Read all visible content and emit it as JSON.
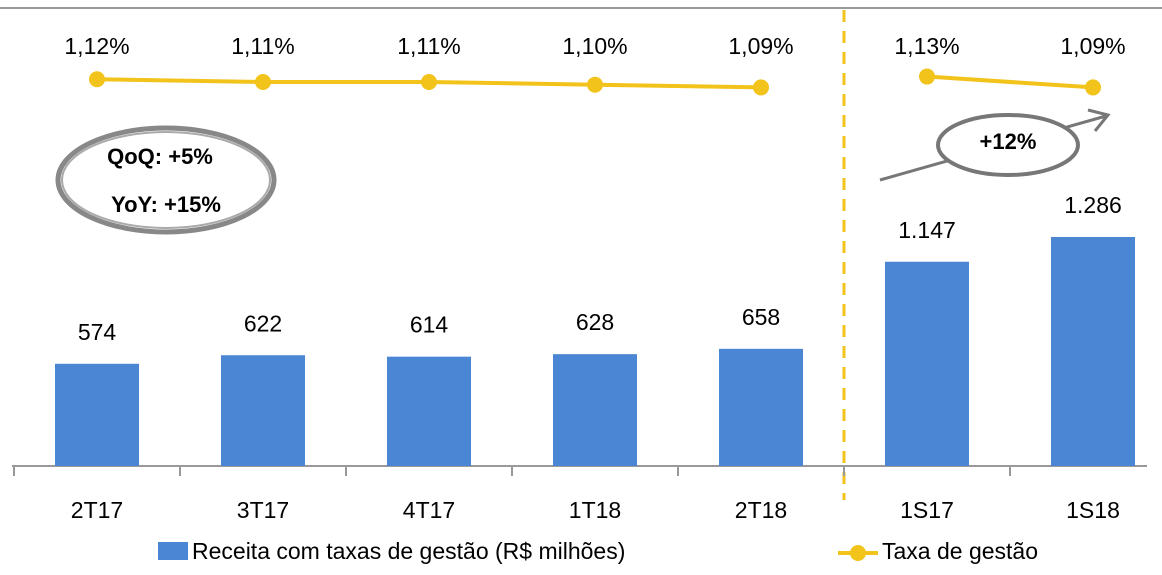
{
  "chart_data": {
    "type": "bar_line",
    "categories": [
      "2T17",
      "3T17",
      "4T17",
      "1T18",
      "2T18",
      "1S17",
      "1S18"
    ],
    "series": [
      {
        "name": "Receita com taxas de gestão (R$ milhões)",
        "color": "#4a86d4",
        "type": "bar",
        "values": [
          574,
          622,
          614,
          628,
          658,
          1147,
          1286
        ],
        "value_labels": [
          "574",
          "622",
          "614",
          "628",
          "658",
          "1.147",
          "1.286"
        ]
      },
      {
        "name": "Taxa de gestão",
        "color": "#f2c31b",
        "type": "line",
        "axis": "y2",
        "values": [
          1.12,
          1.11,
          1.11,
          1.1,
          1.09,
          1.13,
          1.09
        ],
        "value_labels": [
          "1,12%",
          "1,11%",
          "1,11%",
          "1,10%",
          "1,09%",
          "1,13%",
          "1,09%"
        ]
      }
    ],
    "ylim": [
      0,
      2600
    ],
    "y2lim": [
      -0.3,
      1.4
    ],
    "annotations": [
      "QoQ: +5%",
      "YoY: +15%",
      "+12%"
    ],
    "legend": "bottom"
  }
}
